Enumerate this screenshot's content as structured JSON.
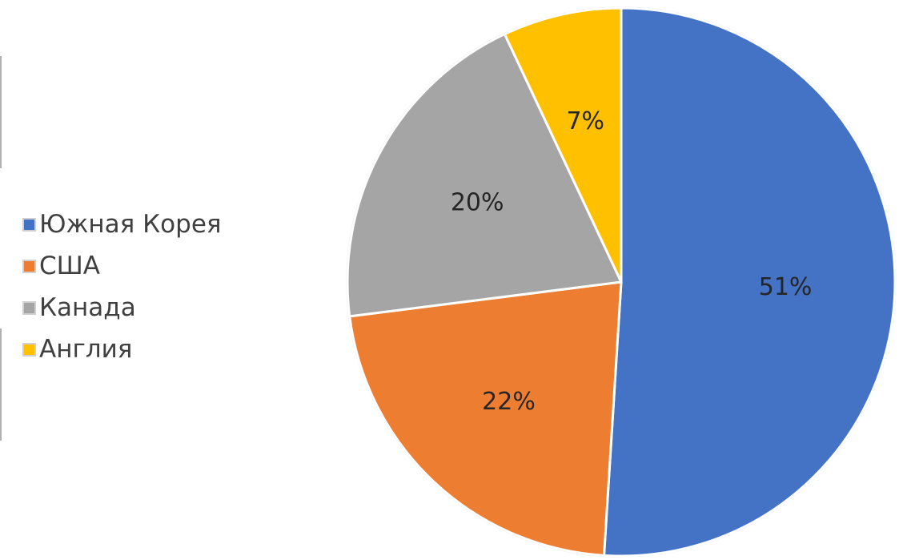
{
  "chart_data": {
    "type": "pie",
    "title": "",
    "legend_position": "left",
    "start_angle": "12 o'clock, clockwise",
    "slices": [
      {
        "label": "Южная Корея",
        "value": 51,
        "value_label": "51%",
        "color": "#4472C4"
      },
      {
        "label": "США",
        "value": 22,
        "value_label": "22%",
        "color": "#ED7D31"
      },
      {
        "label": "Канада",
        "value": 20,
        "value_label": "20%",
        "color": "#A5A5A5"
      },
      {
        "label": "Англия",
        "value": 7,
        "value_label": "7%",
        "color": "#FFC000"
      }
    ]
  }
}
